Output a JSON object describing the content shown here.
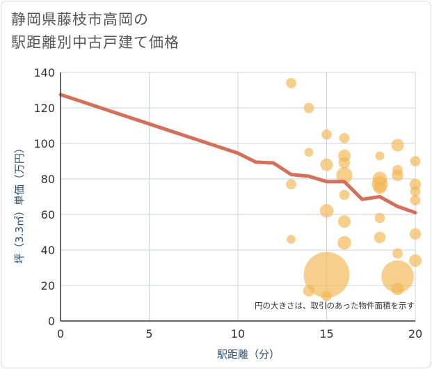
{
  "title_lines": [
    "静岡県藤枝市高岡の",
    "駅距離別中古戸建て価格"
  ],
  "chart_data": {
    "type": "scatter",
    "title": "静岡県藤枝市高岡の駅距離別中古戸建て価格",
    "xlabel": "駅距離（分）",
    "ylabel": "坪（3.3㎡）単価（万円）",
    "xlim": [
      0,
      20
    ],
    "ylim": [
      0,
      140
    ],
    "xticks": [
      0,
      5,
      10,
      15,
      20
    ],
    "yticks": [
      0,
      20,
      40,
      60,
      80,
      100,
      120,
      140
    ],
    "grid": true,
    "note": "円の大きさは、取引のあった物件面積を示す",
    "colors": {
      "bubble": "#f2b650",
      "line": "#d4705a",
      "grid": "#c9d3df",
      "axis": "#333333"
    },
    "bubbles": [
      {
        "x": 13,
        "y": 134,
        "s": 2
      },
      {
        "x": 13,
        "y": 77,
        "s": 2
      },
      {
        "x": 13,
        "y": 46,
        "s": 1.5
      },
      {
        "x": 14,
        "y": 120,
        "s": 2
      },
      {
        "x": 14,
        "y": 95,
        "s": 1.5
      },
      {
        "x": 14,
        "y": 17,
        "s": 2.5
      },
      {
        "x": 15,
        "y": 105,
        "s": 2
      },
      {
        "x": 15,
        "y": 88,
        "s": 3
      },
      {
        "x": 15,
        "y": 62,
        "s": 3.5
      },
      {
        "x": 15,
        "y": 26,
        "s": 40
      },
      {
        "x": 15,
        "y": 14,
        "s": 2
      },
      {
        "x": 16,
        "y": 103,
        "s": 2
      },
      {
        "x": 16,
        "y": 93,
        "s": 3
      },
      {
        "x": 16,
        "y": 89,
        "s": 2.5
      },
      {
        "x": 16,
        "y": 82,
        "s": 5
      },
      {
        "x": 16,
        "y": 71,
        "s": 2
      },
      {
        "x": 16,
        "y": 56,
        "s": 3
      },
      {
        "x": 16,
        "y": 44,
        "s": 3.5
      },
      {
        "x": 18,
        "y": 93,
        "s": 1.5
      },
      {
        "x": 18,
        "y": 80,
        "s": 4
      },
      {
        "x": 18,
        "y": 77,
        "s": 5
      },
      {
        "x": 18,
        "y": 75,
        "s": 3
      },
      {
        "x": 18,
        "y": 58,
        "s": 2
      },
      {
        "x": 18,
        "y": 47,
        "s": 2.5
      },
      {
        "x": 19,
        "y": 99,
        "s": 3
      },
      {
        "x": 19,
        "y": 85,
        "s": 2
      },
      {
        "x": 19,
        "y": 82,
        "s": 2.5
      },
      {
        "x": 19,
        "y": 38,
        "s": 2
      },
      {
        "x": 19,
        "y": 25,
        "s": 20
      },
      {
        "x": 19,
        "y": 18,
        "s": 3
      },
      {
        "x": 20,
        "y": 90,
        "s": 2
      },
      {
        "x": 20,
        "y": 77,
        "s": 2.5
      },
      {
        "x": 20,
        "y": 73,
        "s": 2
      },
      {
        "x": 20,
        "y": 68,
        "s": 2
      },
      {
        "x": 20,
        "y": 49,
        "s": 2.5
      },
      {
        "x": 20,
        "y": 34,
        "s": 3
      }
    ],
    "trend": {
      "x": [
        0,
        10,
        11,
        12,
        13,
        14,
        15,
        16,
        17,
        18,
        19,
        20
      ],
      "y": [
        127.5,
        94.5,
        89.5,
        89,
        82.5,
        81.5,
        78.5,
        78.5,
        68.5,
        70,
        64.5,
        61
      ]
    }
  }
}
